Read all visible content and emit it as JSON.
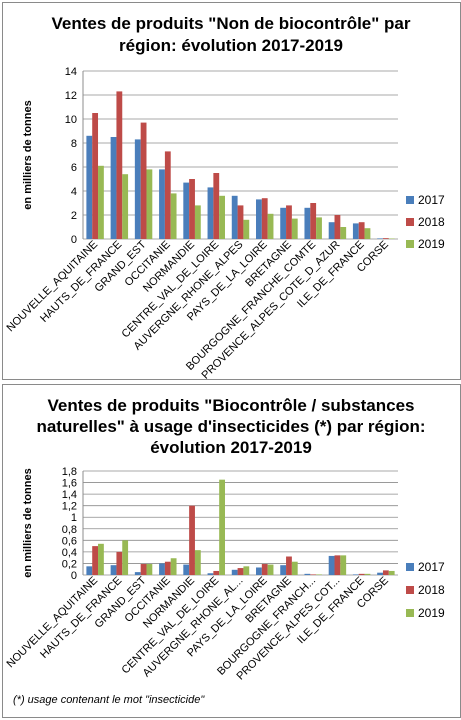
{
  "chart_data": [
    {
      "type": "bar",
      "title_lines": [
        "Ventes de produits \"Non de biocontrôle\" par",
        "région: évolution 2017-2019"
      ],
      "ylabel": "en milliers de tonnes",
      "ylim": [
        0,
        14
      ],
      "yticks": [
        "0",
        "2",
        "4",
        "6",
        "8",
        "10",
        "12",
        "14"
      ],
      "grid": true,
      "legend_position": "right",
      "categories": [
        "NOUVELLE_AQUITAINE",
        "HAUTS_DE_FRANCE",
        "GRAND_EST",
        "OCCITANIE",
        "NORMANDIE",
        "CENTRE_VAL_DE_LOIRE",
        "AUVERGNE_RHONE_ALPES",
        "PAYS_DE_LA_LOIRE",
        "BRETAGNE",
        "BOURGOGNE_FRANCHE_COMTE",
        "PROVENCE_ALPES_COTE_D_AZUR",
        "ILE_DE_FRANCE",
        "CORSE"
      ],
      "series": [
        {
          "name": "2017",
          "color": "#4a7ebb",
          "values": [
            8.6,
            8.5,
            8.3,
            5.8,
            4.7,
            4.3,
            3.6,
            3.3,
            2.6,
            2.6,
            1.4,
            1.3,
            0.05
          ]
        },
        {
          "name": "2018",
          "color": "#be4b48",
          "values": [
            10.5,
            12.3,
            9.7,
            7.3,
            5.0,
            5.5,
            2.8,
            3.4,
            2.8,
            3.0,
            2.0,
            1.4,
            0.07
          ]
        },
        {
          "name": "2019",
          "color": "#98b954",
          "values": [
            6.1,
            5.4,
            5.8,
            3.8,
            2.8,
            3.6,
            1.6,
            2.1,
            1.7,
            1.8,
            1.0,
            0.9,
            0.04
          ]
        }
      ]
    },
    {
      "type": "bar",
      "title_lines": [
        "Ventes de produits \"Biocontrôle / substances",
        "naturelles\" à usage d'insecticides (*) par région:",
        "évolution 2017-2019"
      ],
      "ylabel": "en milliers de tonnes",
      "ylim": [
        0,
        1.8
      ],
      "yticks": [
        "0",
        "0,2",
        "0,4",
        "0,6",
        "0,8",
        "1",
        "1,2",
        "1,4",
        "1,6",
        "1,8"
      ],
      "grid": true,
      "legend_position": "right",
      "categories": [
        "NOUVELLE_AQUITAINE",
        "HAUTS_DE_FRANCE",
        "GRAND_EST",
        "OCCITANIE",
        "NORMANDIE",
        "CENTRE_VAL_DE_LOIRE",
        "AUVERGNE_RHONE_AL...",
        "PAYS_DE_LA_LOIRE",
        "BRETAGNE",
        "BOURGOGNE_FRANCH...",
        "PROVENCE_ALPES_COT...",
        "ILE_DE_FRANCE",
        "CORSE"
      ],
      "series": [
        {
          "name": "2017",
          "color": "#4a7ebb",
          "values": [
            0.15,
            0.17,
            0.05,
            0.2,
            0.18,
            0.03,
            0.09,
            0.13,
            0.17,
            0.02,
            0.33,
            0.01,
            0.04
          ]
        },
        {
          "name": "2018",
          "color": "#be4b48",
          "values": [
            0.5,
            0.4,
            0.19,
            0.23,
            1.2,
            0.07,
            0.12,
            0.19,
            0.32,
            0.01,
            0.34,
            0.02,
            0.08
          ]
        },
        {
          "name": "2019",
          "color": "#98b954",
          "values": [
            0.54,
            0.6,
            0.19,
            0.29,
            0.43,
            1.65,
            0.15,
            0.18,
            0.23,
            0.01,
            0.34,
            0.02,
            0.07
          ]
        }
      ],
      "footnote": "(*) usage contenant le mot \"insecticide\""
    }
  ]
}
